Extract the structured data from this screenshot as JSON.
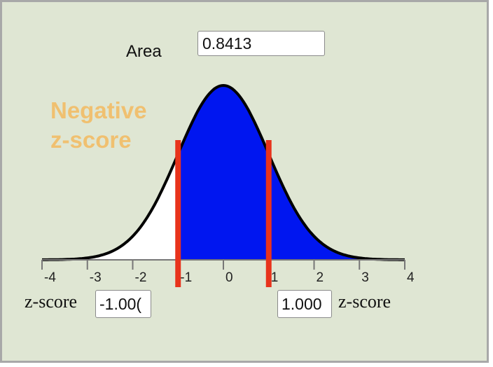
{
  "area": {
    "label": "Area",
    "value": "0.8413"
  },
  "annotation": "Negative\nz-score",
  "left_z": {
    "label": "z-score",
    "value": "-1.00("
  },
  "right_z": {
    "label": "z-score",
    "value": "1.000"
  },
  "axis": {
    "ticks": [
      "-4",
      "-3",
      "-2",
      "-1",
      "0",
      "1",
      "2",
      "3",
      "4"
    ],
    "range": [
      -4,
      4
    ]
  },
  "distribution": {
    "type": "standard-normal",
    "left_bound": -1.0,
    "right_bound": 1.0,
    "shaded_color": "#0016f0",
    "unshaded_color": "#ffffff",
    "marker_color": "#e8331c"
  },
  "colors": {
    "background": "#dfe6d3",
    "annotation": "#f0c070"
  }
}
